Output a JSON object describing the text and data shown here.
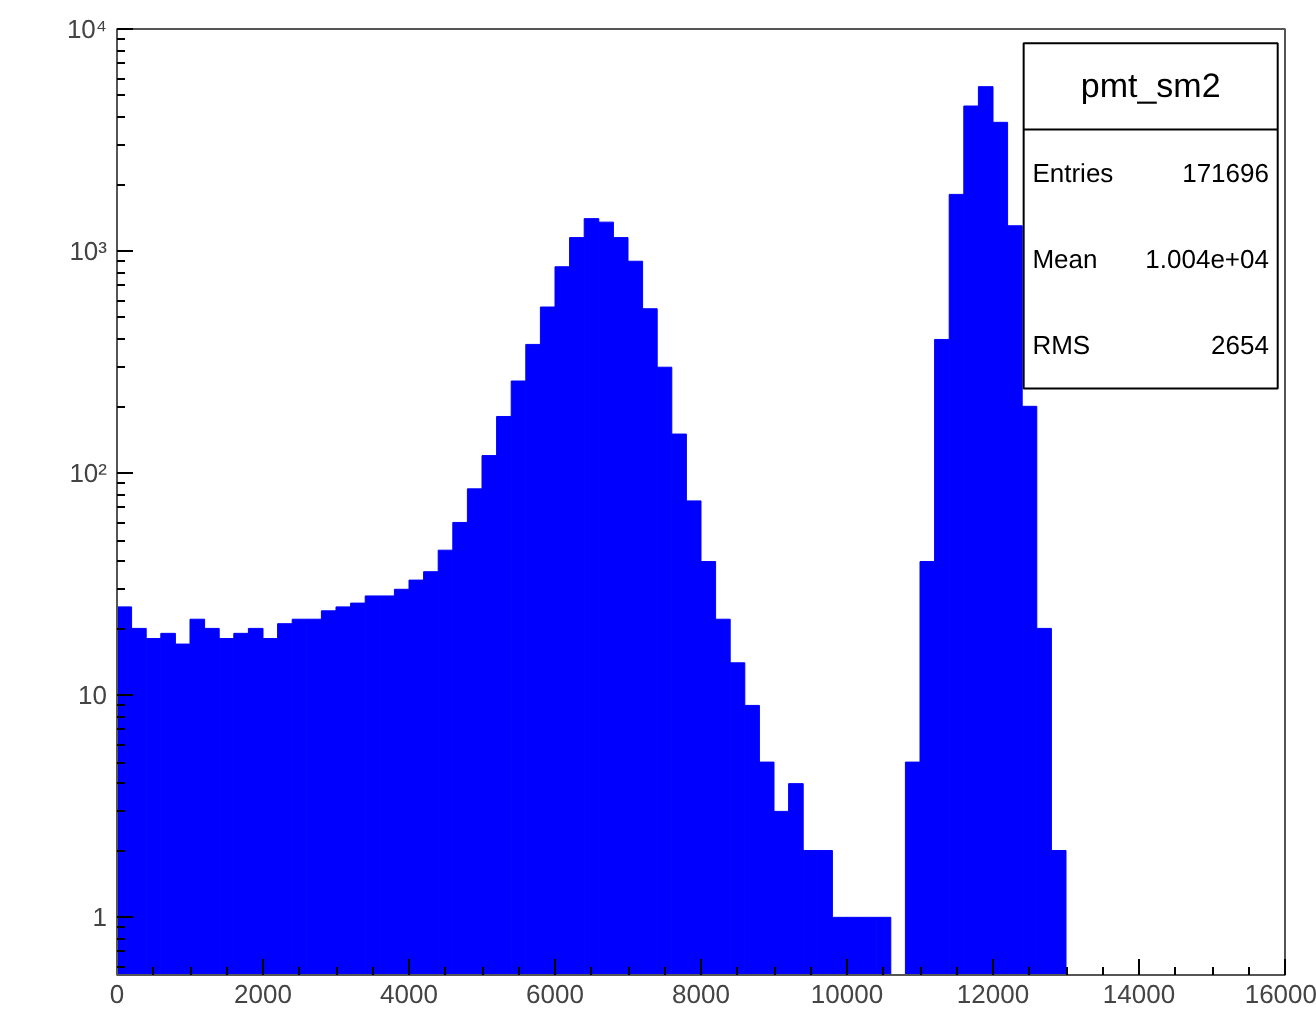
{
  "chart_data": {
    "type": "histogram",
    "title": "pmt_sm2",
    "bins": [
      0,
      200,
      400,
      600,
      800,
      1000,
      1200,
      1400,
      1600,
      1800,
      2000,
      2200,
      2400,
      2600,
      2800,
      3000,
      3200,
      3400,
      3600,
      3800,
      4000,
      4200,
      4400,
      4600,
      4800,
      5000,
      5200,
      5400,
      5600,
      5800,
      6000,
      6200,
      6400,
      6600,
      6800,
      7000,
      7200,
      7400,
      7600,
      7800,
      8000,
      8200,
      8400,
      8600,
      8800,
      9000,
      9200,
      9400,
      9600,
      9800,
      10000,
      10200,
      10400,
      10600,
      10800,
      11000,
      11200,
      11400,
      11600,
      11800,
      12000,
      12200,
      12400,
      12600,
      12800,
      13000
    ],
    "values": [
      25,
      20,
      18,
      19,
      17,
      22,
      20,
      18,
      19,
      20,
      18,
      21,
      22,
      22,
      24,
      25,
      26,
      28,
      28,
      30,
      33,
      36,
      45,
      60,
      85,
      120,
      180,
      260,
      380,
      560,
      850,
      1150,
      1400,
      1350,
      1150,
      900,
      550,
      300,
      150,
      75,
      40,
      22,
      14,
      9,
      5,
      3,
      4,
      2,
      2,
      1,
      1,
      1,
      1,
      null,
      5,
      40,
      400,
      1800,
      4500,
      5500,
      3800,
      1300,
      200,
      20,
      2
    ],
    "color": "#0000ff",
    "xlim": [
      0,
      16000
    ],
    "xticks": [
      0,
      2000,
      4000,
      6000,
      8000,
      10000,
      12000,
      14000,
      16000
    ],
    "ylim": [
      0.55,
      10000
    ],
    "yticks": [
      1,
      10,
      {
        "value": 100,
        "label": "10²"
      },
      {
        "value": 1000,
        "label": "10³"
      },
      {
        "value": 10000,
        "label": "10⁴"
      }
    ],
    "log": "y",
    "grid": false,
    "annotations": [
      "Entries",
      "171696",
      "Mean",
      "1.004e+04",
      "RMS",
      "2654"
    ]
  }
}
